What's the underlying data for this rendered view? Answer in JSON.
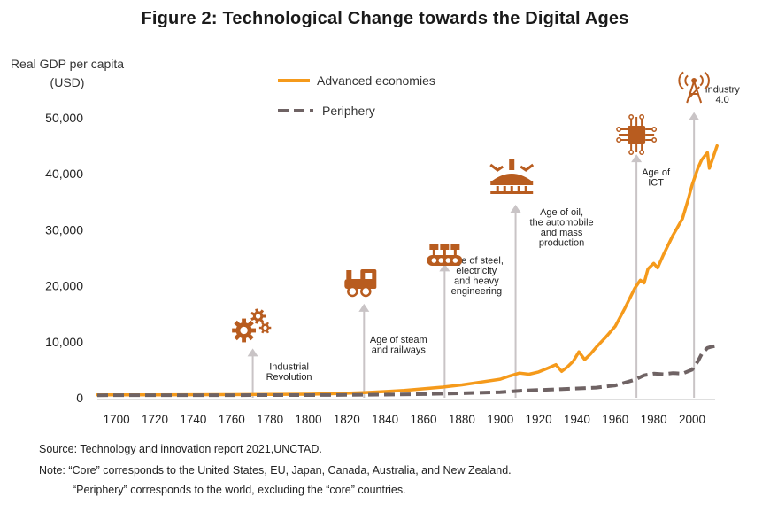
{
  "title": "Figure 2: Technological  Change towards the Digital Ages",
  "footer": {
    "source": "Source: Technology and innovation report 2021,UNCTAD.",
    "note_line1": "Note: “Core” corresponds to the United States, EU, Japan, Canada, Australia, and New Zealand.",
    "note_line2": "“Periphery” corresponds to the world, excluding the “core” countries."
  },
  "colors": {
    "advanced": "#f59a1b",
    "periphery": "#6f6364",
    "arrow": "#c9c4c6",
    "icon": "#b85c1f"
  },
  "chart_data": {
    "type": "line",
    "ylabel": "Real GDP per capita (USD)",
    "xlabel": "",
    "xlim": [
      1690,
      2012
    ],
    "ylim": [
      0,
      50000
    ],
    "xticks": [
      "1700",
      "1720",
      "1740",
      "1760",
      "1780",
      "1800",
      "1820",
      "1840",
      "1860",
      "1880",
      "1900",
      "1920",
      "1940",
      "1960",
      "1980",
      "2000"
    ],
    "yticks": [
      "0",
      "10,000",
      "20,000",
      "30,000",
      "40,000",
      "50,000"
    ],
    "legend_position": "top-center",
    "series": [
      {
        "name": "Advanced economies",
        "style": "solid",
        "color": "#f59a1b",
        "points": [
          [
            1690,
            500
          ],
          [
            1700,
            520
          ],
          [
            1720,
            530
          ],
          [
            1740,
            540
          ],
          [
            1760,
            560
          ],
          [
            1780,
            580
          ],
          [
            1800,
            640
          ],
          [
            1810,
            700
          ],
          [
            1820,
            800
          ],
          [
            1830,
            930
          ],
          [
            1840,
            1100
          ],
          [
            1850,
            1300
          ],
          [
            1860,
            1600
          ],
          [
            1870,
            1900
          ],
          [
            1880,
            2300
          ],
          [
            1890,
            2800
          ],
          [
            1900,
            3300
          ],
          [
            1905,
            3900
          ],
          [
            1910,
            4400
          ],
          [
            1915,
            4200
          ],
          [
            1920,
            4600
          ],
          [
            1925,
            5300
          ],
          [
            1929,
            5900
          ],
          [
            1932,
            4700
          ],
          [
            1935,
            5500
          ],
          [
            1938,
            6500
          ],
          [
            1941,
            8200
          ],
          [
            1944,
            6800
          ],
          [
            1947,
            7800
          ],
          [
            1950,
            9000
          ],
          [
            1955,
            10800
          ],
          [
            1960,
            12800
          ],
          [
            1965,
            16000
          ],
          [
            1970,
            19500
          ],
          [
            1973,
            21000
          ],
          [
            1975,
            20500
          ],
          [
            1977,
            23000
          ],
          [
            1980,
            24000
          ],
          [
            1982,
            23200
          ],
          [
            1985,
            25500
          ],
          [
            1990,
            29000
          ],
          [
            1995,
            32000
          ],
          [
            1998,
            35500
          ],
          [
            2000,
            38000
          ],
          [
            2003,
            41000
          ],
          [
            2005,
            42500
          ],
          [
            2008,
            43800
          ],
          [
            2009,
            41000
          ],
          [
            2010,
            42000
          ],
          [
            2013,
            45000
          ]
        ]
      },
      {
        "name": "Periphery",
        "style": "dashed",
        "color": "#6f6364",
        "points": [
          [
            1690,
            450
          ],
          [
            1700,
            455
          ],
          [
            1750,
            460
          ],
          [
            1800,
            480
          ],
          [
            1820,
            500
          ],
          [
            1840,
            560
          ],
          [
            1860,
            650
          ],
          [
            1880,
            800
          ],
          [
            1900,
            1000
          ],
          [
            1913,
            1300
          ],
          [
            1930,
            1500
          ],
          [
            1950,
            1800
          ],
          [
            1960,
            2200
          ],
          [
            1970,
            3200
          ],
          [
            1975,
            4000
          ],
          [
            1980,
            4300
          ],
          [
            1985,
            4200
          ],
          [
            1990,
            4400
          ],
          [
            1995,
            4300
          ],
          [
            2000,
            5000
          ],
          [
            2003,
            6500
          ],
          [
            2005,
            7800
          ],
          [
            2008,
            8900
          ],
          [
            2010,
            9100
          ],
          [
            2013,
            9300
          ]
        ]
      }
    ],
    "annotations": [
      {
        "year": 1771,
        "top_value": 8800,
        "icon": "gears-icon",
        "label_lines": [
          "Industrial",
          "Revolution"
        ]
      },
      {
        "year": 1829,
        "top_value": 16800,
        "icon": "locomotive-icon",
        "label_lines": [
          "Age of steam",
          "and railways"
        ]
      },
      {
        "year": 1871,
        "top_value": 24000,
        "icon": "conveyor-belt-icon",
        "label_lines": [
          "Age of steel,",
          "electricity",
          "and heavy",
          "engineering"
        ]
      },
      {
        "year": 1908,
        "top_value": 34500,
        "icon": "assembly-robot-icon",
        "label_lines": [
          "Age of oil,",
          "the automobile",
          "and mass",
          "production"
        ]
      },
      {
        "year": 1971,
        "top_value": 43500,
        "icon": "microchip-icon",
        "label_lines": [
          "Age of",
          "ICT"
        ]
      },
      {
        "year": 2001,
        "top_value": 51000,
        "icon": "radio-tower-icon",
        "label_lines": [
          "Industry",
          "4.0"
        ]
      }
    ]
  }
}
